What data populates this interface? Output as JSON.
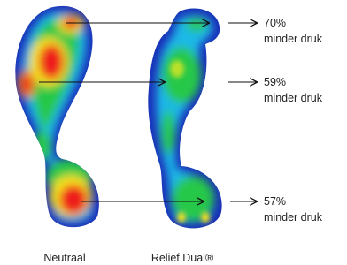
{
  "feet": [
    {
      "label": "Neutraal"
    },
    {
      "label": "Relief Dual®"
    }
  ],
  "annotations": [
    {
      "value": "70%",
      "text": "minder druk"
    },
    {
      "value": "59%",
      "text": "minder druk"
    },
    {
      "value": "57%",
      "text": "minder druk"
    }
  ]
}
